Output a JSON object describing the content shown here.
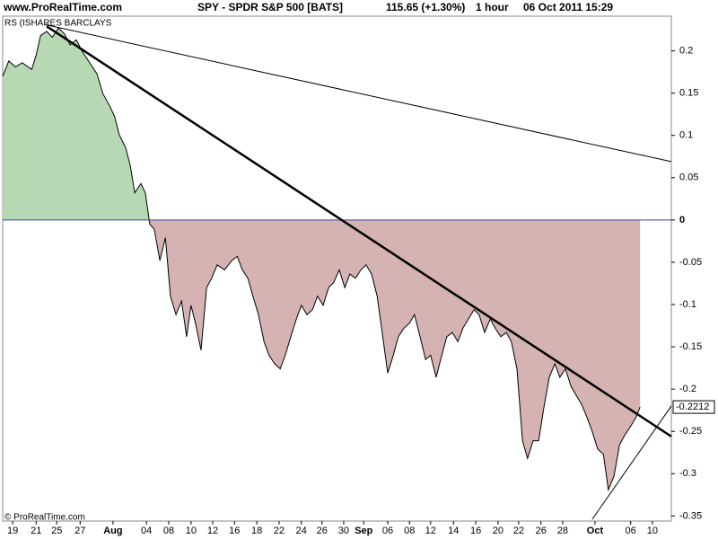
{
  "chart_data": {
    "type": "area",
    "site": "www.ProRealTime.com",
    "instrument": "SPY - SPDR S&P 500 [BATS]",
    "price": "115.65 (+1.30%)",
    "interval": "1 hour",
    "timestamp": "06 Oct 2011 15:29",
    "indicator_label": "RS (ISHARES BARCLAYS",
    "copyright": "© ProRealTime.com",
    "last_value_label": "-0.2212",
    "x": [
      0,
      1.1,
      2.3,
      3.5,
      5.2,
      6,
      6.8,
      7.9,
      8.9,
      10,
      11.1,
      12.1,
      13.2,
      14.3,
      15.6,
      16.9,
      18,
      19.2,
      20.1,
      20.9,
      22.1,
      22.9,
      23.7,
      24.8,
      25.6,
      26.4,
      27.2,
      28.2,
      29.2,
      30.1,
      31.1,
      32.1,
      33,
      33.8,
      34.6,
      35.6,
      36.6,
      37.5,
      38.5,
      39.8,
      41.1,
      42.1,
      43,
      44,
      44.9,
      45.9,
      46.9,
      47.8,
      48.8,
      49.8,
      50.7,
      51.7,
      52.7,
      53.6,
      54.6,
      55.6,
      56.5,
      57.5,
      58.5,
      59.4,
      60.4,
      61.4,
      62.3,
      63.3,
      64.3,
      65.2,
      66.2,
      67.2,
      68.1,
      69.1,
      70.1,
      71,
      72,
      73,
      73.9,
      74.9,
      75.9,
      76.8,
      77.8,
      78.8,
      79.7,
      80.7,
      81.7,
      82.6,
      83.6,
      84.6,
      85.5,
      86.5,
      87.5,
      88.4,
      89.4,
      90.4,
      91.3,
      92.3,
      93.3,
      94.2,
      95.2,
      96.2,
      97.1,
      98.1,
      99.1,
      100,
      101,
      102,
      102.9,
      103.9,
      104.9,
      105.8,
      106.8,
      107.8,
      108.7,
      109.7,
      110.7,
      111.6,
      112.6,
      113.6,
      114.4
    ],
    "series": [
      {
        "name": "RS",
        "color": "#000000",
        "fill_positive": "#b6d9b3",
        "fill_negative": "#d5b3b3",
        "values": [
          0.17,
          0.188,
          0.181,
          0.186,
          0.178,
          0.195,
          0.218,
          0.223,
          0.216,
          0.227,
          0.22,
          0.207,
          0.213,
          0.199,
          0.186,
          0.173,
          0.149,
          0.135,
          0.122,
          0.101,
          0.085,
          0.064,
          0.032,
          0.043,
          0.032,
          -0.005,
          -0.011,
          -0.048,
          -0.021,
          -0.09,
          -0.112,
          -0.096,
          -0.138,
          -0.101,
          -0.122,
          -0.154,
          -0.08,
          -0.069,
          -0.053,
          -0.059,
          -0.048,
          -0.043,
          -0.059,
          -0.069,
          -0.09,
          -0.112,
          -0.144,
          -0.16,
          -0.17,
          -0.176,
          -0.16,
          -0.138,
          -0.117,
          -0.101,
          -0.112,
          -0.106,
          -0.09,
          -0.101,
          -0.08,
          -0.074,
          -0.059,
          -0.08,
          -0.064,
          -0.069,
          -0.059,
          -0.053,
          -0.064,
          -0.09,
          -0.133,
          -0.181,
          -0.16,
          -0.138,
          -0.128,
          -0.122,
          -0.112,
          -0.138,
          -0.165,
          -0.16,
          -0.186,
          -0.16,
          -0.138,
          -0.133,
          -0.144,
          -0.128,
          -0.117,
          -0.106,
          -0.112,
          -0.133,
          -0.117,
          -0.128,
          -0.138,
          -0.133,
          -0.144,
          -0.176,
          -0.261,
          -0.282,
          -0.261,
          -0.261,
          -0.223,
          -0.186,
          -0.17,
          -0.186,
          -0.176,
          -0.197,
          -0.207,
          -0.218,
          -0.234,
          -0.25,
          -0.271,
          -0.277,
          -0.319,
          -0.303,
          -0.266,
          -0.255,
          -0.245,
          -0.234,
          -0.2212
        ]
      }
    ],
    "trendlines": [
      {
        "x": [
          7.9,
          120
        ],
        "y": [
          0.229,
          -0.256
        ],
        "color": "#000000"
      },
      {
        "x": [
          7.6,
          120
        ],
        "y": [
          0.231,
          0.069
        ],
        "color": "#000000"
      },
      {
        "x": [
          105.8,
          120
        ],
        "y": [
          -0.354,
          -0.22
        ],
        "color": "#000000"
      }
    ],
    "zero_line_color": "#3344aa",
    "xlim": [
      0,
      120
    ],
    "ylim": [
      -0.356,
      0.241
    ],
    "yticks": [
      0.2,
      0.15,
      0.1,
      0.05,
      0,
      -0.05,
      -0.1,
      -0.15,
      -0.2,
      -0.25,
      -0.3,
      -0.35
    ],
    "xticks": [
      {
        "value": 1.8,
        "label": "19"
      },
      {
        "value": 6.0,
        "label": "21"
      },
      {
        "value": 9.7,
        "label": "25"
      },
      {
        "value": 13.9,
        "label": "27"
      },
      {
        "value": 19.8,
        "label": "Aug"
      },
      {
        "value": 25.8,
        "label": "04"
      },
      {
        "value": 29.8,
        "label": "08"
      },
      {
        "value": 33.8,
        "label": "10"
      },
      {
        "value": 37.7,
        "label": "12"
      },
      {
        "value": 41.6,
        "label": "16"
      },
      {
        "value": 45.6,
        "label": "18"
      },
      {
        "value": 49.6,
        "label": "22"
      },
      {
        "value": 53.6,
        "label": "24"
      },
      {
        "value": 57.3,
        "label": "26"
      },
      {
        "value": 61.2,
        "label": "30"
      },
      {
        "value": 64.8,
        "label": "Sep"
      },
      {
        "value": 69.1,
        "label": "06"
      },
      {
        "value": 73.0,
        "label": "08"
      },
      {
        "value": 76.8,
        "label": "12"
      },
      {
        "value": 80.9,
        "label": "14"
      },
      {
        "value": 84.9,
        "label": "16"
      },
      {
        "value": 88.9,
        "label": "20"
      },
      {
        "value": 92.6,
        "label": "22"
      },
      {
        "value": 96.6,
        "label": "26"
      },
      {
        "value": 100.5,
        "label": "28"
      },
      {
        "value": 106.3,
        "label": "Oct"
      },
      {
        "value": 112.7,
        "label": "06"
      },
      {
        "value": 116.6,
        "label": "10"
      }
    ]
  }
}
